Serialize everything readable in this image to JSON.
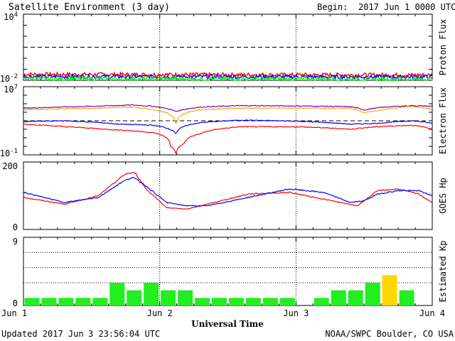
{
  "header": {
    "title": "Satellite Environment (3 day)",
    "begin_label": "Begin:",
    "begin_value": "2017 Jun 1 0000 UTC"
  },
  "footer": {
    "updated_label": "Updated 2017 Jun",
    "updated_value": "3 23:56:04 UTC",
    "credit": "NOAA/SWPC Boulder, CO USA"
  },
  "x_axis": {
    "label": "Universal Time",
    "ticks": [
      "Jun 1",
      "Jun 2",
      "Jun 3",
      "Jun 4"
    ],
    "range_days": [
      0,
      3
    ]
  },
  "colors": {
    "red": "#ff0000",
    "blue": "#0000ff",
    "green": "#00ff00",
    "orange": "#ffa500",
    "purple": "#8800aa",
    "kp_normal": "#22ee22",
    "kp_storm": "#ffd700"
  },
  "chart_data": [
    {
      "type": "line",
      "panel": "proton",
      "ylabel": "Proton Flux",
      "yscale": "log",
      "ylim": [
        0.01,
        10000
      ],
      "tick_labels": {
        "top": {
          "base": "10",
          "exp": "4"
        },
        "bottom": {
          "base": "10",
          "exp": "-2"
        }
      },
      "threshold": 10,
      "series": [
        {
          "color": "red",
          "points": [
            [
              0,
              0.035
            ],
            [
              1.5,
              0.032
            ],
            [
              3,
              0.03
            ]
          ]
        },
        {
          "color": "blue",
          "points": [
            [
              0,
              0.022
            ],
            [
              1.5,
              0.021
            ],
            [
              3,
              0.02
            ]
          ]
        },
        {
          "color": "green",
          "points": [
            [
              0,
              0.014
            ],
            [
              1.5,
              0.0135
            ],
            [
              3,
              0.013
            ]
          ]
        }
      ]
    },
    {
      "type": "line",
      "panel": "electron",
      "ylabel": "Electron Flux",
      "yscale": "log",
      "ylim": [
        0.1,
        10000000
      ],
      "tick_labels": {
        "top": {
          "base": "10",
          "exp": "7"
        },
        "bottom": {
          "base": "10",
          "exp": "-1"
        }
      },
      "threshold": 1000,
      "series": [
        {
          "color": "purple",
          "points": [
            [
              0,
              30000
            ],
            [
              0.5,
              50000
            ],
            [
              0.8,
              70000
            ],
            [
              0.95,
              50000
            ],
            [
              1.12,
              12000
            ],
            [
              1.3,
              40000
            ],
            [
              1.6,
              60000
            ],
            [
              2.0,
              55000
            ],
            [
              2.4,
              45000
            ],
            [
              2.5,
              18000
            ],
            [
              2.65,
              40000
            ],
            [
              2.85,
              60000
            ],
            [
              3,
              50000
            ]
          ]
        },
        {
          "color": "orange",
          "points": [
            [
              0,
              20000
            ],
            [
              0.5,
              30000
            ],
            [
              0.8,
              40000
            ],
            [
              0.95,
              20000
            ],
            [
              1.12,
              200
            ],
            [
              1.3,
              20000
            ],
            [
              1.6,
              30000
            ],
            [
              2.0,
              30000
            ],
            [
              2.4,
              30000
            ],
            [
              2.5,
              8000
            ],
            [
              2.65,
              20000
            ],
            [
              2.85,
              50000
            ],
            [
              3,
              20000
            ]
          ]
        },
        {
          "color": "blue",
          "points": [
            [
              0,
              800
            ],
            [
              0.3,
              1000
            ],
            [
              0.7,
              400
            ],
            [
              0.95,
              300
            ],
            [
              1.12,
              30
            ],
            [
              1.3,
              600
            ],
            [
              1.6,
              1200
            ],
            [
              2.0,
              900
            ],
            [
              2.4,
              400
            ],
            [
              2.6,
              500
            ],
            [
              2.85,
              1000
            ],
            [
              3,
              500
            ]
          ]
        },
        {
          "color": "red",
          "points": [
            [
              0,
              400
            ],
            [
              0.3,
              200
            ],
            [
              0.6,
              100
            ],
            [
              0.95,
              40
            ],
            [
              1.08,
              1
            ],
            [
              1.12,
              0.12
            ],
            [
              1.18,
              2
            ],
            [
              1.3,
              30
            ],
            [
              1.6,
              200
            ],
            [
              2.0,
              200
            ],
            [
              2.4,
              100
            ],
            [
              2.6,
              200
            ],
            [
              2.85,
              300
            ],
            [
              3,
              100
            ]
          ]
        }
      ]
    },
    {
      "type": "line",
      "panel": "goes",
      "ylabel": "GOES Hp",
      "yscale": "linear",
      "ylim": [
        0,
        200
      ],
      "tick_labels": {
        "top": "200",
        "bottom": "0"
      },
      "series": [
        {
          "color": "red",
          "points": [
            [
              0,
              95
            ],
            [
              0.3,
              75
            ],
            [
              0.55,
              100
            ],
            [
              0.75,
              165
            ],
            [
              0.82,
              168
            ],
            [
              0.9,
              120
            ],
            [
              1.05,
              65
            ],
            [
              1.2,
              60
            ],
            [
              1.35,
              75
            ],
            [
              1.65,
              105
            ],
            [
              1.95,
              110
            ],
            [
              2.2,
              90
            ],
            [
              2.45,
              70
            ],
            [
              2.6,
              115
            ],
            [
              2.75,
              120
            ],
            [
              2.9,
              105
            ],
            [
              3,
              80
            ]
          ]
        },
        {
          "color": "blue",
          "points": [
            [
              0,
              110
            ],
            [
              0.3,
              80
            ],
            [
              0.55,
              95
            ],
            [
              0.72,
              140
            ],
            [
              0.8,
              155
            ],
            [
              0.88,
              135
            ],
            [
              1.05,
              80
            ],
            [
              1.2,
              70
            ],
            [
              1.35,
              70
            ],
            [
              1.65,
              95
            ],
            [
              1.95,
              120
            ],
            [
              2.2,
              110
            ],
            [
              2.4,
              80
            ],
            [
              2.5,
              85
            ],
            [
              2.6,
              105
            ],
            [
              2.75,
              115
            ],
            [
              2.9,
              115
            ],
            [
              3,
              100
            ]
          ]
        }
      ]
    },
    {
      "type": "bar",
      "panel": "kp",
      "ylabel": "Estimated Kp",
      "ylim": [
        0,
        9
      ],
      "tick_labels": {
        "top": "9",
        "bottom": "0"
      },
      "bar_width_days": 0.125,
      "values": [
        1,
        1,
        1,
        1,
        1,
        3,
        2,
        3,
        2,
        2,
        1,
        1,
        1,
        1,
        1,
        1,
        0,
        1,
        2,
        2,
        3,
        4,
        2,
        0
      ],
      "storm_threshold": 4
    }
  ]
}
